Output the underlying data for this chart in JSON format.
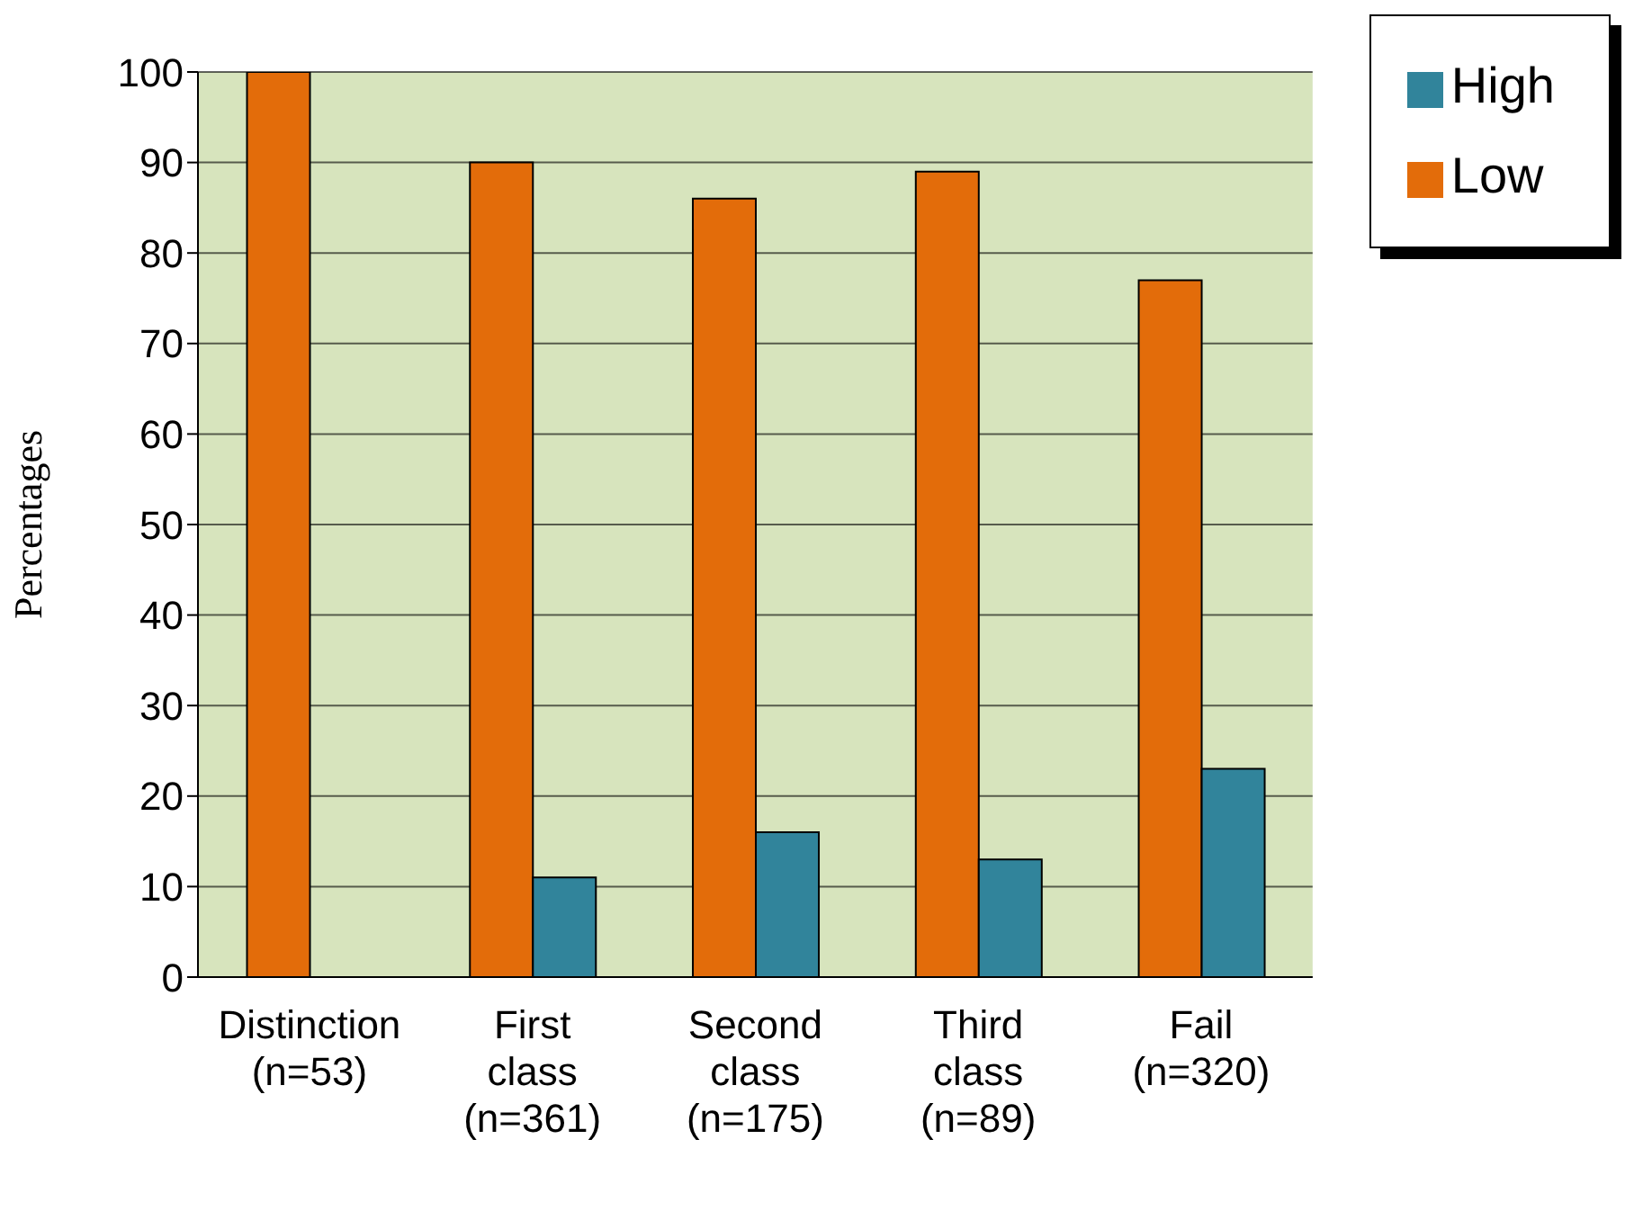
{
  "chart_data": {
    "type": "bar",
    "ylabel": "Percentages",
    "categories": [
      "Distinction\n(n=53)",
      "First\nclass\n(n=361)",
      "Second\nclass\n(n=175)",
      "Third\nclass\n(n=89)",
      "Fail\n(n=320)"
    ],
    "series": [
      {
        "name": "Low",
        "color": "#e36c0a",
        "values": [
          100,
          90,
          86,
          89,
          77
        ]
      },
      {
        "name": "High",
        "color": "#31849b",
        "values": [
          null,
          11,
          16,
          13,
          23
        ]
      }
    ],
    "ylim": [
      0,
      100
    ],
    "yticks": [
      0,
      10,
      20,
      30,
      40,
      50,
      60,
      70,
      80,
      90,
      100
    ],
    "grid": "y",
    "legend": "top right"
  }
}
